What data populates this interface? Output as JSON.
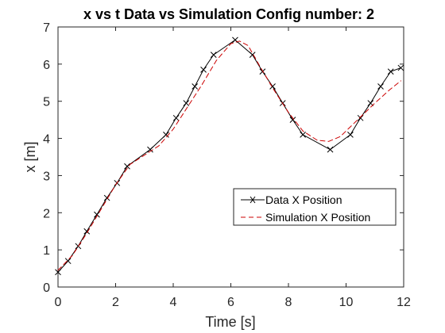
{
  "chart_data": {
    "type": "line",
    "title": "x vs t Data vs Simulation Config number: 2",
    "xlabel": "Time [s]",
    "ylabel": "x [m]",
    "xlim": [
      0,
      12
    ],
    "ylim": [
      0,
      7
    ],
    "xticks": [
      "0",
      "2",
      "4",
      "6",
      "8",
      "10",
      "12"
    ],
    "yticks": [
      "0",
      "1",
      "2",
      "3",
      "4",
      "5",
      "6",
      "7"
    ],
    "grid": false,
    "legend_position": "lower-right",
    "series": [
      {
        "name": "Data  X Position",
        "color": "#000000",
        "style": "solid-with-x-markers",
        "x": [
          0.0,
          0.35,
          0.7,
          1.0,
          1.35,
          1.7,
          2.05,
          2.4,
          3.2,
          3.75,
          4.1,
          4.45,
          4.75,
          5.05,
          5.4,
          6.15,
          6.75,
          7.1,
          7.45,
          7.8,
          8.15,
          8.5,
          9.45,
          10.15,
          10.5,
          10.85,
          11.2,
          11.55,
          11.9
        ],
        "y": [
          0.4,
          0.7,
          1.1,
          1.5,
          1.95,
          2.4,
          2.8,
          3.25,
          3.7,
          4.1,
          4.55,
          4.95,
          5.4,
          5.85,
          6.25,
          6.65,
          6.25,
          5.8,
          5.4,
          4.95,
          4.5,
          4.1,
          3.7,
          4.1,
          4.55,
          4.95,
          5.4,
          5.8,
          5.9
        ]
      },
      {
        "name": "Simulation X Position",
        "color": "#cc0000",
        "style": "dashed",
        "x": [
          0.0,
          0.5,
          1.0,
          1.5,
          2.0,
          2.5,
          3.0,
          3.5,
          4.0,
          4.5,
          5.0,
          5.5,
          6.0,
          6.3,
          6.6,
          7.0,
          7.5,
          8.0,
          8.5,
          9.0,
          9.4,
          9.8,
          10.2,
          10.6,
          11.0,
          11.5,
          11.9
        ],
        "y": [
          0.45,
          0.85,
          1.45,
          2.1,
          2.75,
          3.3,
          3.55,
          3.8,
          4.25,
          4.85,
          5.45,
          6.1,
          6.55,
          6.62,
          6.5,
          5.95,
          5.3,
          4.7,
          4.2,
          3.95,
          3.92,
          4.05,
          4.35,
          4.65,
          4.95,
          5.3,
          5.55
        ]
      }
    ]
  }
}
